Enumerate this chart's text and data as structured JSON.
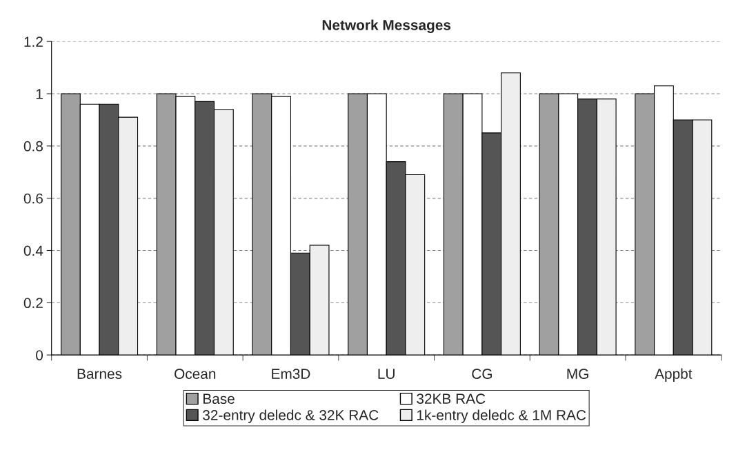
{
  "chart_data": {
    "type": "bar",
    "title": "Network Messages",
    "categories": [
      "Barnes",
      "Ocean",
      "Em3D",
      "LU",
      "CG",
      "MG",
      "Appbt"
    ],
    "series": [
      {
        "name": "Base",
        "color": "#a0a0a0",
        "values": [
          1,
          1,
          1,
          1,
          1,
          1,
          1
        ]
      },
      {
        "name": "32KB RAC",
        "color": "#ffffff",
        "values": [
          0.96,
          0.99,
          0.99,
          1,
          1,
          1,
          1.03
        ]
      },
      {
        "name": "32-entry deledc & 32K RAC",
        "color": "#555555",
        "values": [
          0.96,
          0.97,
          0.39,
          0.74,
          0.85,
          0.98,
          0.9
        ]
      },
      {
        "name": "1k-entry deledc & 1M RAC",
        "color": "#eeeeee",
        "values": [
          0.91,
          0.94,
          0.42,
          0.69,
          1.08,
          0.98,
          0.9
        ]
      }
    ],
    "ylim": [
      0,
      1.2
    ],
    "yticks": [
      0,
      0.2,
      0.4,
      0.6,
      0.8,
      1,
      1.2
    ],
    "grid": "y",
    "legend": "bottom"
  }
}
